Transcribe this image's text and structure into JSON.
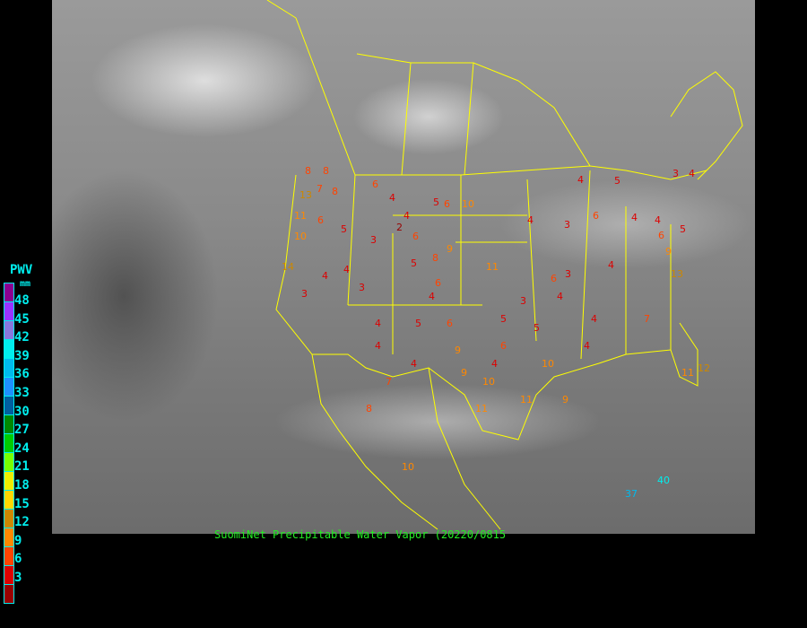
{
  "caption": "SuomiNet Precipitable Water Vapor (20220/0815",
  "legend": {
    "title": "PWV",
    "unit": "mm",
    "labels": [
      "48",
      "45",
      "42",
      "39",
      "36",
      "33",
      "30",
      "27",
      "24",
      "21",
      "18",
      "15",
      "12",
      "9",
      "6",
      "3"
    ],
    "colors": [
      "#8b0090",
      "#9933ff",
      "#8877dd",
      "#00eeee",
      "#00bbee",
      "#1e90ff",
      "#005f9f",
      "#008800",
      "#00cc00",
      "#77ff00",
      "#eeee00",
      "#ffd700",
      "#cc8800",
      "#ff8800",
      "#ff4400",
      "#dd0000",
      "#990000"
    ]
  },
  "colors": {
    "border": "#ffff00",
    "caption": "#22ee22",
    "legend_text": "#00eeee",
    "background": "#000000"
  },
  "stations": [
    "8",
    "8",
    "7",
    "8",
    "6",
    "4",
    "5",
    "6",
    "10",
    "11",
    "6",
    "10",
    "13",
    "14",
    "4",
    "3",
    "4",
    "5",
    "3",
    "2",
    "6",
    "4",
    "5",
    "3",
    "4",
    "11",
    "8",
    "5",
    "6",
    "9",
    "4",
    "3",
    "4",
    "5",
    "6",
    "4",
    "4",
    "3",
    "4",
    "5",
    "6",
    "9",
    "4",
    "3",
    "4",
    "7",
    "4",
    "9",
    "10",
    "11",
    "10",
    "11",
    "9",
    "6",
    "4",
    "3",
    "5",
    "7",
    "4",
    "5",
    "6",
    "4",
    "4",
    "4",
    "6",
    "9",
    "13",
    "11",
    "37",
    "40",
    "12",
    "10",
    "8"
  ]
}
